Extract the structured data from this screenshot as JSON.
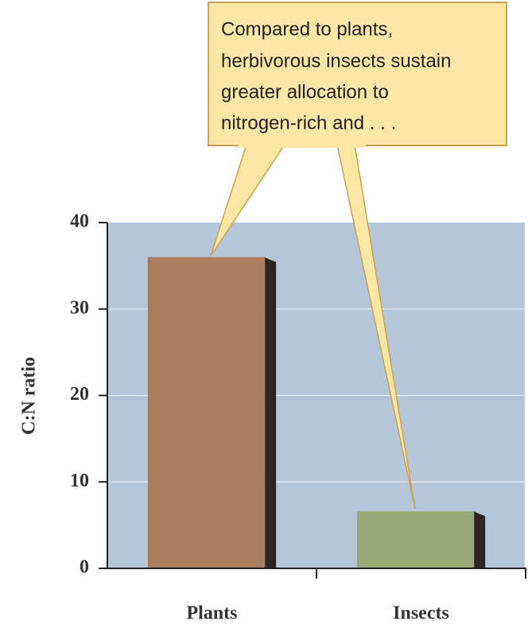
{
  "chart_data": {
    "type": "bar",
    "ylabel": "C:N ratio",
    "categories": [
      "Plants",
      "Insects"
    ],
    "values": [
      36,
      6.6
    ],
    "colors": [
      "#a97c5e",
      "#9aa878"
    ],
    "ylim": [
      0,
      40
    ],
    "yticks": [
      0,
      10,
      20,
      30,
      40
    ],
    "grid": true,
    "annotation": [
      "Compared to plants,",
      "herbivorous insects sustain",
      "greater allocation to",
      "nitrogen-rich and . . ."
    ]
  }
}
